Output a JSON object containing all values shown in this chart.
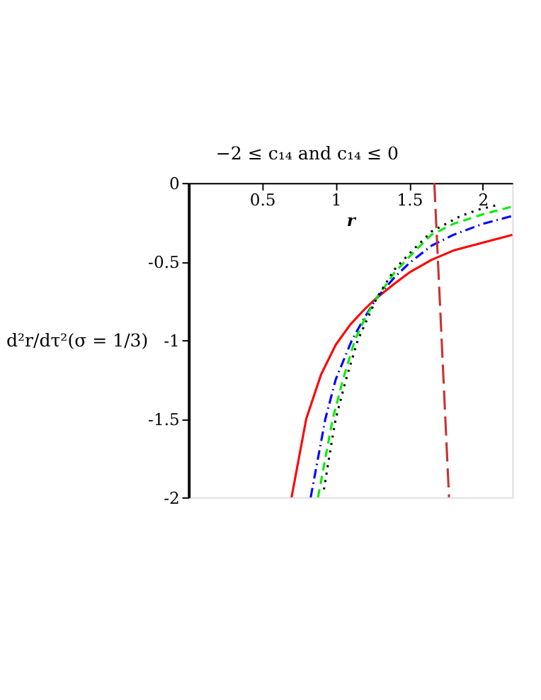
{
  "chart_data": {
    "type": "line",
    "title": "−2 ≤ c₁₄ and c₁₄ ≤ 0",
    "xlabel": "r",
    "ylabel": "d²r/dτ²(σ = 1/3)",
    "xlim": [
      0,
      2.2
    ],
    "ylim": [
      -2,
      0
    ],
    "xticks": [
      0.5,
      1,
      1.5,
      2
    ],
    "yticks": [
      0,
      -0.5,
      -1,
      -1.5,
      -2
    ],
    "grid": false,
    "series": [
      {
        "color": "#ff0000",
        "line_style": "solid",
        "x": [
          0.7,
          0.75,
          0.8,
          0.9,
          1.0,
          1.1,
          1.2,
          1.28,
          1.4,
          1.5,
          1.65,
          1.8,
          2.0,
          2.2
        ],
        "values": [
          -2,
          -1.75,
          -1.5,
          -1.22,
          -1.03,
          -0.9,
          -0.8,
          -0.73,
          -0.64,
          -0.57,
          -0.49,
          -0.43,
          -0.38,
          -0.33
        ]
      },
      {
        "color": "#0000ff",
        "line_style": "dashdot",
        "x": [
          0.83,
          0.88,
          0.93,
          1.0,
          1.11,
          1.2,
          1.28,
          1.4,
          1.5,
          1.65,
          1.8,
          2.0,
          2.2
        ],
        "values": [
          -2,
          -1.75,
          -1.5,
          -1.25,
          -1.0,
          -0.85,
          -0.73,
          -0.6,
          -0.51,
          -0.4,
          -0.33,
          -0.26,
          -0.21
        ]
      },
      {
        "color": "#00ee00",
        "line_style": "dashed",
        "x": [
          0.88,
          0.93,
          0.98,
          1.05,
          1.13,
          1.2,
          1.28,
          1.4,
          1.5,
          1.65,
          1.8,
          2.0,
          2.2
        ],
        "values": [
          -2,
          -1.75,
          -1.5,
          -1.25,
          -1.0,
          -0.86,
          -0.73,
          -0.57,
          -0.47,
          -0.33,
          -0.26,
          -0.2,
          -0.15
        ]
      },
      {
        "color": "#000000",
        "line_style": "dotted",
        "x": [
          0.92,
          0.96,
          1.0,
          1.07,
          1.15,
          1.28,
          1.4,
          1.5,
          1.65,
          1.75,
          1.85,
          1.97,
          2.1
        ],
        "values": [
          -1.95,
          -1.72,
          -1.5,
          -1.25,
          -1.0,
          -0.73,
          -0.55,
          -0.45,
          -0.31,
          -0.26,
          -0.21,
          -0.17,
          -0.14
        ]
      },
      {
        "color": "#c83232",
        "line_style": "longdash",
        "x": [
          1.67,
          1.77
        ],
        "values": [
          0,
          -2
        ]
      }
    ]
  }
}
